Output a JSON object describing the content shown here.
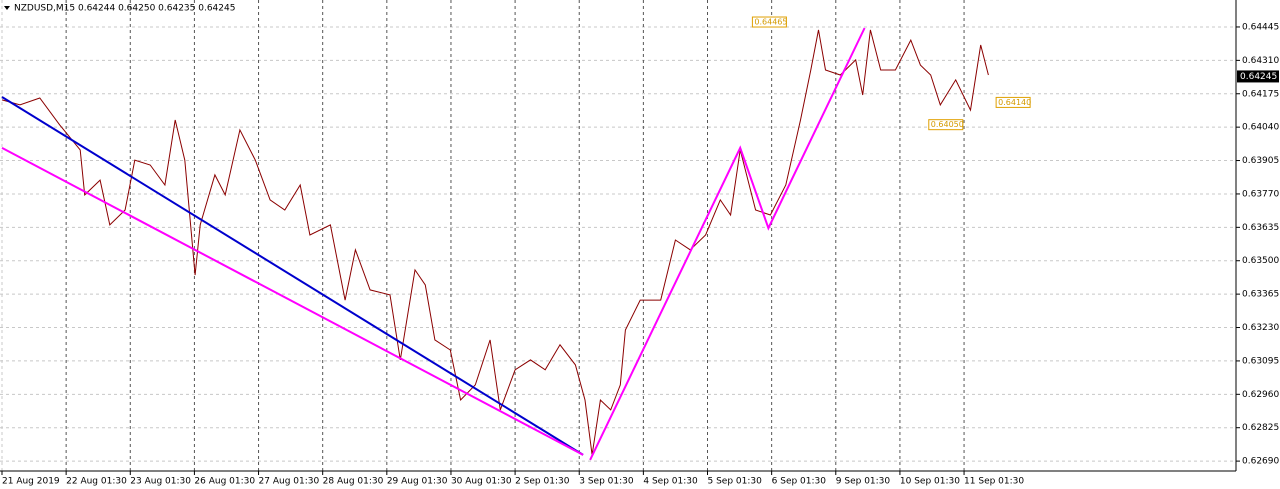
{
  "chart_data": {
    "type": "line",
    "title": "NZDUSD,M15  0.64244 0.64250 0.64235 0.64245",
    "xlim": [
      0,
      19.24
    ],
    "ylim": [
      0.6265,
      0.64554
    ],
    "grid": true,
    "xticks": [
      {
        "value": 0,
        "label": "21 Aug 2019"
      },
      {
        "value": 1,
        "label": "22 Aug 01:30"
      },
      {
        "value": 2,
        "label": "23 Aug 01:30"
      },
      {
        "value": 3,
        "label": "26 Aug 01:30"
      },
      {
        "value": 4,
        "label": "27 Aug 01:30"
      },
      {
        "value": 5,
        "label": "28 Aug 01:30"
      },
      {
        "value": 6,
        "label": "29 Aug 01:30"
      },
      {
        "value": 7,
        "label": "30 Aug 01:30"
      },
      {
        "value": 8,
        "label": "2 Sep 01:30"
      },
      {
        "value": 9,
        "label": "3 Sep 01:30"
      },
      {
        "value": 10,
        "label": "4 Sep 01:30"
      },
      {
        "value": 11,
        "label": "5 Sep 01:30"
      },
      {
        "value": 12,
        "label": "6 Sep 01:30"
      },
      {
        "value": 13,
        "label": "9 Sep 01:30"
      },
      {
        "value": 14,
        "label": "10 Sep 01:30"
      },
      {
        "value": 15,
        "label": "11 Sep 01:30"
      }
    ],
    "yticks": [
      0.64445,
      {
        "value": 0.6431,
        "label": "0.64310"
      },
      0.64175,
      {
        "value": 0.6404,
        "label": "0.64040"
      },
      0.63905,
      {
        "value": 0.6377,
        "label": "0.63770"
      },
      0.63635,
      {
        "value": 0.635,
        "label": "0.63500"
      },
      0.63365,
      {
        "value": 0.6323,
        "label": "0.63230"
      },
      0.63095,
      {
        "value": 0.6296,
        "label": "0.62960"
      },
      0.62825,
      {
        "value": 0.6269,
        "label": "0.62690"
      }
    ],
    "current_price": 0.64245,
    "annotations": [
      {
        "x": 11.7,
        "value": 0.64465,
        "label": "0.64465"
      },
      {
        "x": 14.45,
        "value": 0.6405,
        "label": "0.64050"
      },
      {
        "x": 15.5,
        "value": 0.6414,
        "label": "0.64140"
      }
    ],
    "series": [
      {
        "color": "#8b0000",
        "x": [
          0,
          0.28,
          0.59,
          0.9,
          1.22,
          1.29,
          1.53,
          1.68,
          1.92,
          2.07,
          2.31,
          2.54,
          2.7,
          2.85,
          3.01,
          3.09,
          3.32,
          3.48,
          3.71,
          3.95,
          4.18,
          4.41,
          4.65,
          4.8,
          5.12,
          5.35,
          5.51,
          5.74,
          6.05,
          6.21,
          6.44,
          6.6,
          6.75,
          6.99,
          7.15,
          7.38,
          7.61,
          7.77,
          8,
          8.24,
          8.47,
          8.7,
          8.94,
          9.09,
          9.2,
          9.33,
          9.49,
          9.64,
          9.72,
          9.95,
          10.27,
          10.5,
          10.73,
          10.97,
          11.2,
          11.36,
          11.51,
          11.75,
          11.98,
          12.22,
          12.45,
          12.61,
          12.73,
          12.84,
          13.07,
          13.31,
          13.42,
          13.54,
          13.7,
          13.93,
          14.17,
          14.32,
          14.48,
          14.63,
          14.87,
          15.1,
          15.26,
          15.38
        ],
        "values": [
          0.6415,
          0.6413,
          0.64158,
          0.64049,
          0.63948,
          0.63766,
          0.63826,
          0.63645,
          0.63705,
          0.63907,
          0.63887,
          0.63806,
          0.64069,
          0.63907,
          0.63442,
          0.63645,
          0.63847,
          0.63766,
          0.64029,
          0.63907,
          0.63746,
          0.63705,
          0.63806,
          0.63604,
          0.63645,
          0.63341,
          0.63544,
          0.63382,
          0.63362,
          0.63099,
          0.63463,
          0.63402,
          0.6318,
          0.63139,
          0.62937,
          0.62998,
          0.6318,
          0.62897,
          0.63059,
          0.63099,
          0.63059,
          0.6316,
          0.63079,
          0.62937,
          0.62715,
          0.62937,
          0.62897,
          0.62998,
          0.6322,
          0.63341,
          0.63341,
          0.63584,
          0.63544,
          0.63604,
          0.63746,
          0.63685,
          0.63948,
          0.63705,
          0.63685,
          0.63806,
          0.64069,
          0.64271,
          0.64433,
          0.64271,
          0.64251,
          0.64312,
          0.6417,
          0.64433,
          0.64271,
          0.64271,
          0.64392,
          0.64291,
          0.64251,
          0.6413,
          0.64231,
          0.64109,
          0.64372,
          0.64251
        ]
      },
      {
        "color": "#0000cd",
        "x": [
          0,
          9.06
        ],
        "values": [
          0.64162,
          0.62715
        ]
      },
      {
        "color": "#ff00ff",
        "x": [
          0,
          9.06
        ],
        "values": [
          0.63956,
          0.62715
        ]
      },
      {
        "color": "#ff00ff",
        "x": [
          9.17,
          11.51,
          11.95,
          13.45
        ],
        "values": [
          0.62695,
          0.63956,
          0.63632,
          0.64441
        ]
      }
    ]
  }
}
